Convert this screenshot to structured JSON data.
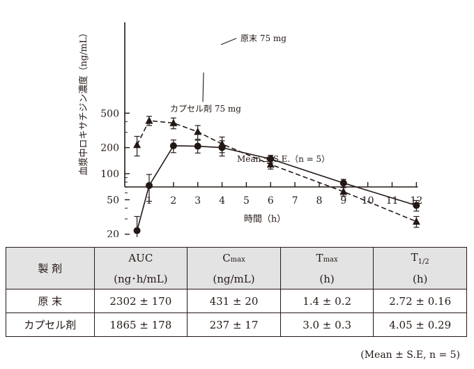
{
  "chart_data": {
    "type": "line",
    "ylabel": "血漿中ロキサチジン濃度（ng/mL）",
    "xlabel": "時間（h）",
    "x_ticks": [
      1,
      2,
      3,
      4,
      5,
      6,
      7,
      8,
      9,
      10,
      11,
      12
    ],
    "y_ticks": [
      20,
      50,
      100,
      200,
      500
    ],
    "y_scale": "log",
    "xlim": [
      0,
      12.5
    ],
    "ylim": [
      10,
      600
    ],
    "annotation": "Mean ± S.E.（n = 5）",
    "series": [
      {
        "name": "原末 75 mg",
        "marker": "triangle",
        "dash": true,
        "x": [
          0.5,
          1,
          2,
          3,
          4,
          6,
          9,
          12
        ],
        "y": [
          215,
          410,
          385,
          305,
          220,
          128,
          62,
          28
        ],
        "err": [
          55,
          50,
          55,
          55,
          45,
          15,
          7,
          4
        ]
      },
      {
        "name": "カプセル剤 75 mg",
        "marker": "circle",
        "dash": false,
        "x": [
          0.5,
          1,
          2,
          3,
          4,
          6,
          9,
          12
        ],
        "y": [
          22,
          73,
          210,
          208,
          200,
          148,
          78,
          43
        ],
        "err": [
          10,
          25,
          35,
          35,
          40,
          15,
          8,
          6
        ]
      }
    ]
  },
  "table": {
    "headers": {
      "formulation": "製 剤",
      "auc": "AUC",
      "auc_unit": "(ng･h/mL)",
      "cmax_main": "C",
      "cmax_sub": "max",
      "cmax_unit": "(ng/mL)",
      "tmax_main": "T",
      "tmax_sub": "max",
      "tmax_unit": "(h)",
      "thalf_main": "T",
      "thalf_sub": "1/2",
      "thalf_unit": "(h)"
    },
    "rows": [
      {
        "name": "原 末",
        "auc": "2302 ± 170",
        "cmax": "431 ± 20",
        "tmax": "1.4 ± 0.2",
        "thalf": "2.72 ± 0.16"
      },
      {
        "name": "カプセル剤",
        "auc": "1865 ± 178",
        "cmax": "237 ± 17",
        "tmax": "3.0 ± 0.3",
        "thalf": "4.05 ± 0.29"
      }
    ],
    "footnote": "(Mean ± S.E, n = 5)"
  }
}
